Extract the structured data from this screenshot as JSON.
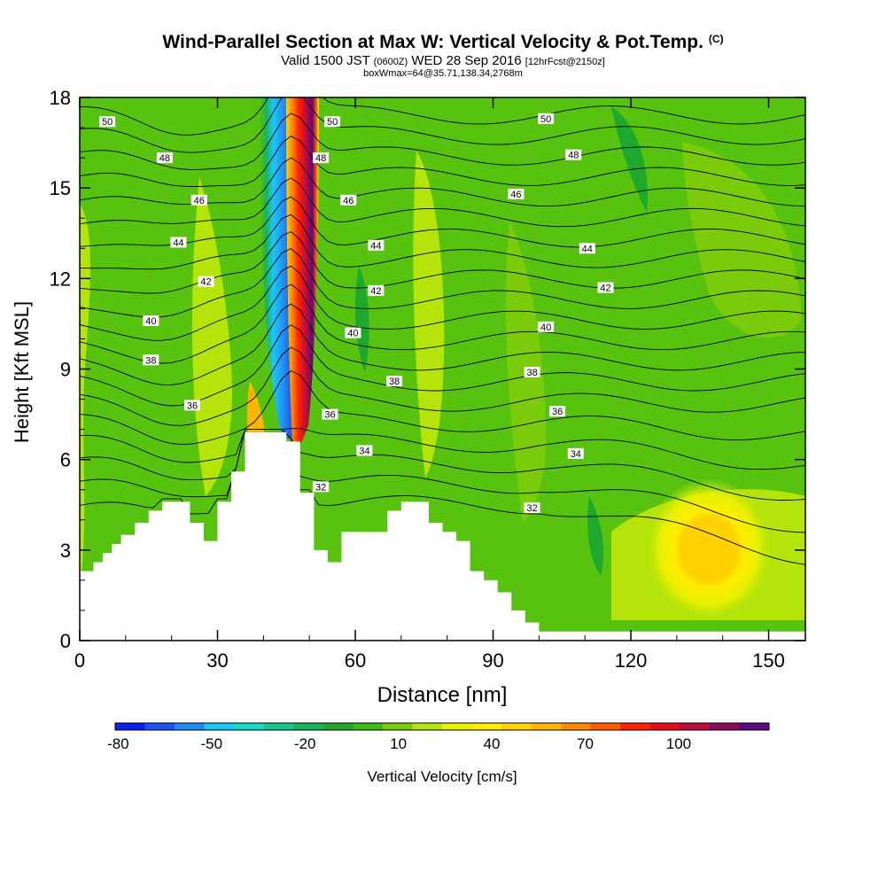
{
  "header": {
    "title": "Wind-Parallel Section at Max W: Vertical Velocity & Pot.Temp.",
    "title_mark": "(C)",
    "valid_prefix": "Valid 1500 JST",
    "valid_utc": "(0600Z)",
    "valid_date": "WED 28 Sep 2016",
    "forecast_info": "[12hrFcst@2150z]",
    "box_info": "boxWmax=64@35.71,138.34,2768m"
  },
  "chart_data": {
    "type": "heatmap",
    "title": "Wind-Parallel Section at Max W: Vertical Velocity & Pot.Temp.",
    "xlabel": "Distance [nm]",
    "ylabel": "Height [Kft MSL]",
    "xlim": [
      0,
      158
    ],
    "ylim": [
      0,
      18
    ],
    "x_ticks": [
      0,
      30,
      60,
      90,
      120,
      150
    ],
    "y_ticks": [
      0,
      3,
      6,
      9,
      12,
      15,
      18
    ],
    "colorbar": {
      "label": "Vertical Velocity [cm/s]",
      "tick_labels": [
        "-80",
        "-50",
        "-20",
        "10",
        "40",
        "70",
        "100"
      ],
      "tick_values": [
        -80,
        -50,
        -20,
        10,
        40,
        70,
        100
      ],
      "min": -80,
      "max": 130,
      "step": 10,
      "colors": [
        "#0a1ef5",
        "#1c50f5",
        "#1f8cf5",
        "#19c8f5",
        "#12dcc8",
        "#14c88c",
        "#18b45a",
        "#1fa82e",
        "#3cbb14",
        "#7acc0a",
        "#b4e40a",
        "#e6f000",
        "#ffee00",
        "#ffd200",
        "#ffb400",
        "#ff8c00",
        "#ff5a00",
        "#ff2200",
        "#e60a1e",
        "#be0a3c",
        "#8c0a5a",
        "#5a0a82"
      ]
    },
    "series": [
      {
        "name": "Vertical Velocity",
        "notes": "background ~ -10..0 cm/s; updraft max ~120 cm/s near x=48nm; downdraft ~-70 cm/s near x=43nm; weak updraft ~40 cm/s near x=135nm, 3 kft"
      }
    ],
    "terrain_profile": [
      [
        0,
        2.3
      ],
      [
        3,
        2.3
      ],
      [
        3,
        2.6
      ],
      [
        5,
        2.6
      ],
      [
        5,
        2.9
      ],
      [
        7,
        2.9
      ],
      [
        7,
        3.2
      ],
      [
        9,
        3.2
      ],
      [
        9,
        3.5
      ],
      [
        12,
        3.5
      ],
      [
        12,
        3.9
      ],
      [
        15,
        3.9
      ],
      [
        15,
        4.3
      ],
      [
        18,
        4.3
      ],
      [
        18,
        4.6
      ],
      [
        24,
        4.6
      ],
      [
        24,
        3.9
      ],
      [
        27,
        3.9
      ],
      [
        27,
        3.3
      ],
      [
        30,
        3.3
      ],
      [
        30,
        4.6
      ],
      [
        33,
        4.6
      ],
      [
        33,
        5.6
      ],
      [
        36,
        5.6
      ],
      [
        36,
        6.9
      ],
      [
        42,
        6.9
      ],
      [
        42,
        6.9
      ],
      [
        45,
        6.9
      ],
      [
        45,
        6.6
      ],
      [
        48,
        6.6
      ],
      [
        48,
        4.9
      ],
      [
        51,
        4.9
      ],
      [
        51,
        3.0
      ],
      [
        54,
        3.0
      ],
      [
        54,
        2.6
      ],
      [
        57,
        2.6
      ],
      [
        57,
        3.6
      ],
      [
        64,
        3.6
      ],
      [
        64,
        3.6
      ],
      [
        67,
        3.6
      ],
      [
        67,
        4.3
      ],
      [
        70,
        4.3
      ],
      [
        70,
        4.6
      ],
      [
        76,
        4.6
      ],
      [
        76,
        3.9
      ],
      [
        79,
        3.9
      ],
      [
        79,
        3.6
      ],
      [
        82,
        3.6
      ],
      [
        82,
        3.3
      ],
      [
        85,
        3.3
      ],
      [
        85,
        2.3
      ],
      [
        88,
        2.3
      ],
      [
        88,
        2.0
      ],
      [
        91,
        2.0
      ],
      [
        91,
        1.6
      ],
      [
        94,
        1.6
      ],
      [
        94,
        1.0
      ],
      [
        97,
        1.0
      ],
      [
        97,
        0.6
      ],
      [
        100,
        0.6
      ],
      [
        100,
        0.3
      ],
      [
        158,
        0.3
      ]
    ],
    "contours": {
      "name": "Potential Temperature",
      "levels": [
        32,
        33,
        34,
        35,
        36,
        37,
        38,
        39,
        40,
        41,
        42,
        43,
        44,
        45,
        46,
        47,
        48,
        49,
        50,
        51
      ],
      "labels": [
        {
          "text": "50",
          "x": 6,
          "y": 17.2
        },
        {
          "text": "48",
          "x": 18.5,
          "y": 16.0
        },
        {
          "text": "46",
          "x": 26,
          "y": 14.6
        },
        {
          "text": "44",
          "x": 21.5,
          "y": 13.2
        },
        {
          "text": "42",
          "x": 27.5,
          "y": 11.9
        },
        {
          "text": "40",
          "x": 15.5,
          "y": 10.6
        },
        {
          "text": "38",
          "x": 15.5,
          "y": 9.3
        },
        {
          "text": "36",
          "x": 24.5,
          "y": 7.8
        },
        {
          "text": "50",
          "x": 55,
          "y": 17.2
        },
        {
          "text": "48",
          "x": 52.5,
          "y": 16.0
        },
        {
          "text": "46",
          "x": 58.5,
          "y": 14.6
        },
        {
          "text": "44",
          "x": 64.5,
          "y": 13.1
        },
        {
          "text": "42",
          "x": 64.5,
          "y": 11.6
        },
        {
          "text": "40",
          "x": 59.5,
          "y": 10.2
        },
        {
          "text": "38",
          "x": 68.5,
          "y": 8.6
        },
        {
          "text": "36",
          "x": 54.5,
          "y": 7.5
        },
        {
          "text": "34",
          "x": 62,
          "y": 6.3
        },
        {
          "text": "32",
          "x": 52.5,
          "y": 5.1
        },
        {
          "text": "50",
          "x": 101.5,
          "y": 17.3
        },
        {
          "text": "48",
          "x": 107.5,
          "y": 16.1
        },
        {
          "text": "46",
          "x": 95,
          "y": 14.8
        },
        {
          "text": "44",
          "x": 110.5,
          "y": 13.0
        },
        {
          "text": "42",
          "x": 114.5,
          "y": 11.7
        },
        {
          "text": "40",
          "x": 101.5,
          "y": 10.4
        },
        {
          "text": "38",
          "x": 98.5,
          "y": 8.9
        },
        {
          "text": "36",
          "x": 104,
          "y": 7.6
        },
        {
          "text": "34",
          "x": 108,
          "y": 6.2
        },
        {
          "text": "32",
          "x": 98.5,
          "y": 4.4
        }
      ]
    }
  }
}
